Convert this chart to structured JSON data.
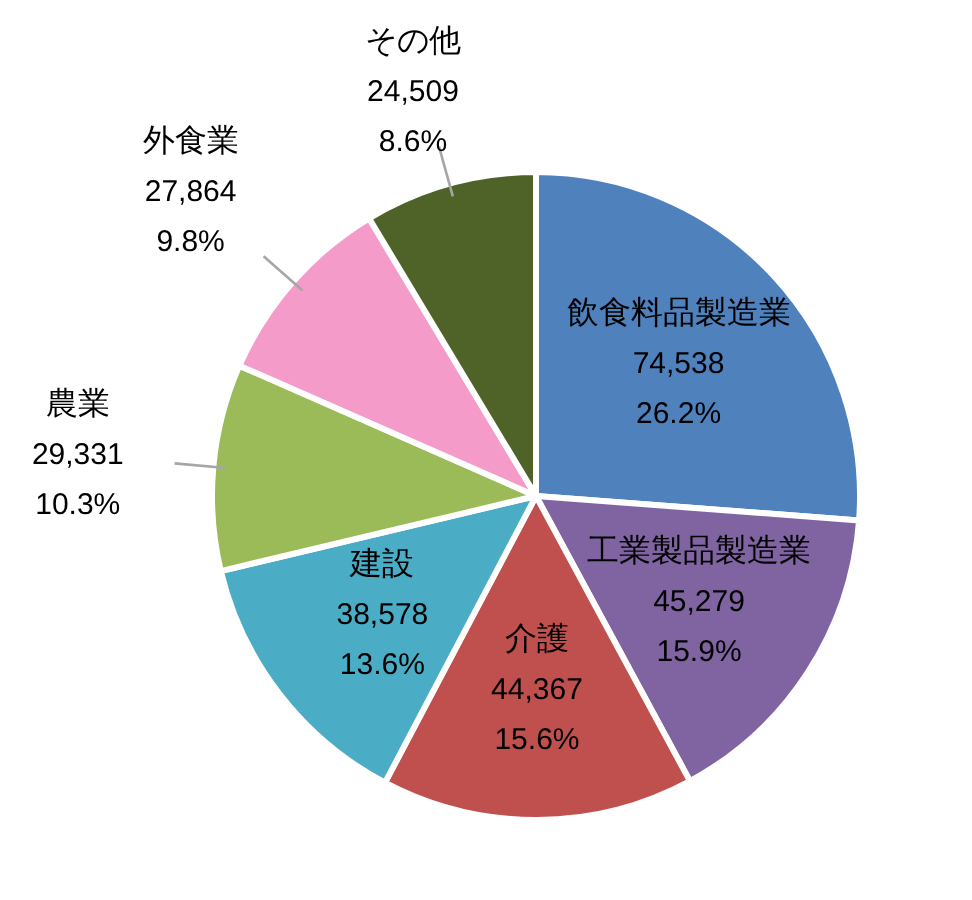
{
  "chart_data": {
    "type": "pie",
    "categories": [
      "飲食料品製造業",
      "工業製品製造業",
      "介護",
      "建設",
      "農業",
      "外食業",
      "その他"
    ],
    "values": [
      74538,
      45279,
      44367,
      38578,
      29331,
      27864,
      24509
    ],
    "value_labels": [
      "74,538\n26.2%",
      "45,279\n15.9%",
      "44,367\n15.6%",
      "38,578\n13.6%",
      "29,331\n10.3%",
      "27,864\n9.8%",
      "24,509\n8.6%"
    ],
    "colors": [
      "#4f81bd",
      "#8064a2",
      "#c0504d",
      "#4bacc6",
      "#9bbb59",
      "#f59bc9",
      "#4f6228"
    ]
  }
}
